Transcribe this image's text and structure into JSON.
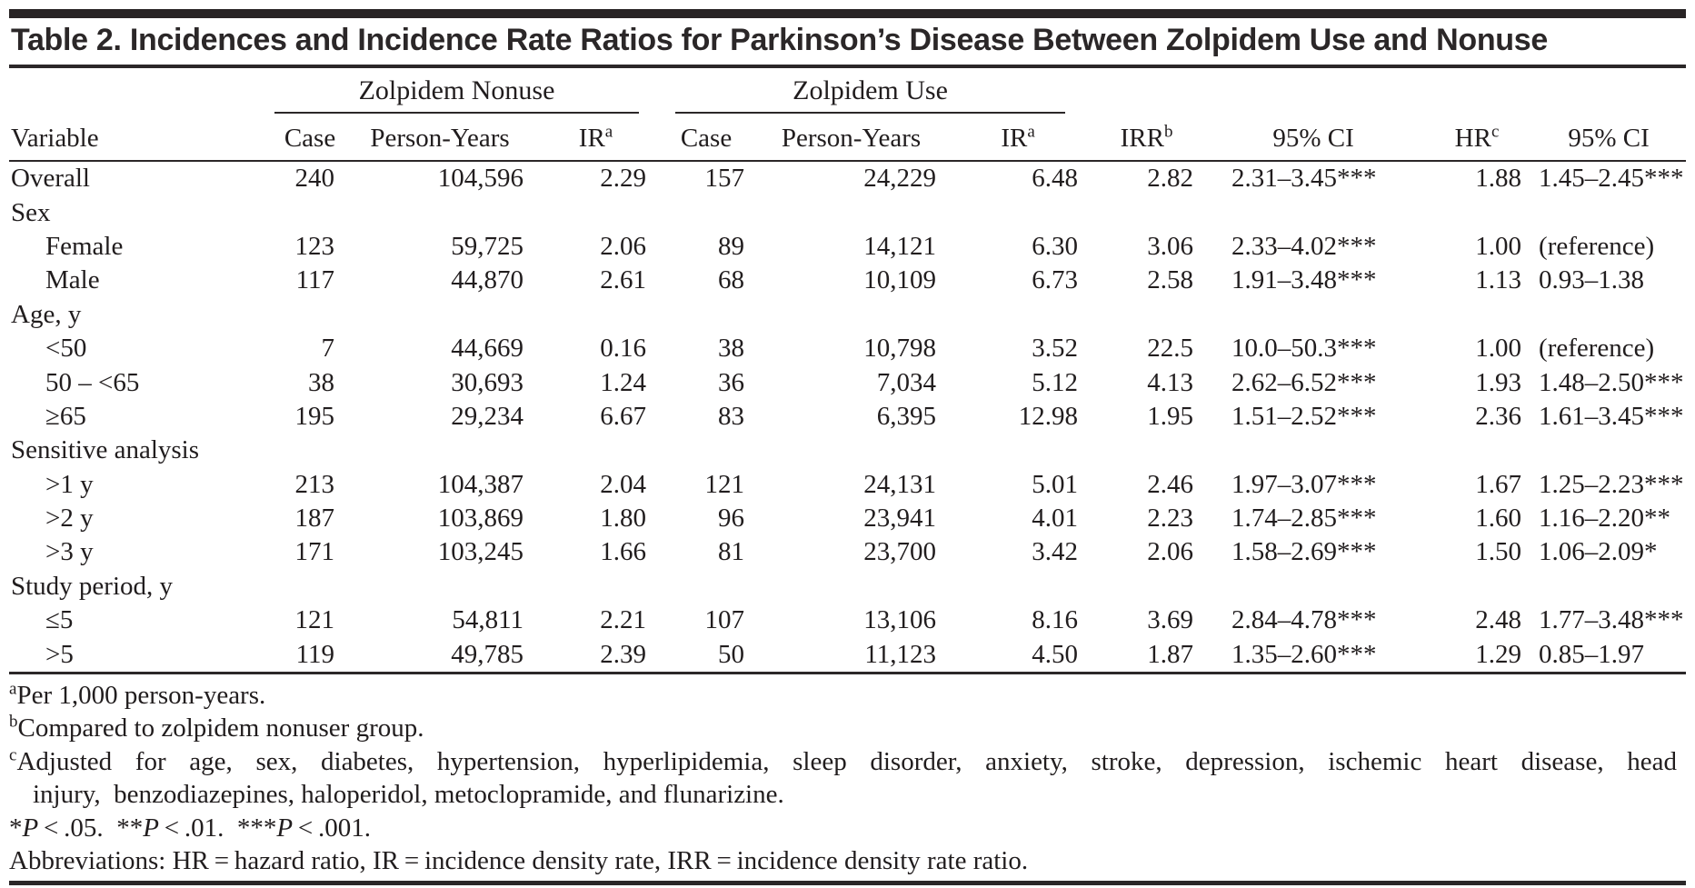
{
  "colors": {
    "ink": "#2b2728",
    "background": "#ffffff"
  },
  "title": "Table 2. Incidences and Incidence Rate Ratios for Parkinson’s Disease Between Zolpidem Use and Nonuse",
  "table": {
    "header": {
      "variable": "Variable",
      "groups": [
        {
          "label": "Zolpidem Nonuse",
          "cols": [
            {
              "label": "Case"
            },
            {
              "label": "Person-Years"
            },
            {
              "label": "IR",
              "sup": "a"
            }
          ]
        },
        {
          "label": "Zolpidem Use",
          "cols": [
            {
              "label": "Case"
            },
            {
              "label": "Person-Years"
            },
            {
              "label": "IR",
              "sup": "a"
            }
          ]
        }
      ],
      "extra": [
        {
          "label": "IRR",
          "sup": "b"
        },
        {
          "label": "95% CI"
        },
        {
          "label": "HR",
          "sup": "c"
        },
        {
          "label": "95% CI"
        }
      ]
    },
    "rows": [
      {
        "variable": "Overall",
        "indent": false,
        "section": false,
        "values": [
          "240",
          "104,596",
          "2.29",
          "157",
          "24,229",
          "6.48",
          "2.82",
          "2.31–3.45***",
          "1.88",
          "1.45–2.45***"
        ]
      },
      {
        "variable": "Sex",
        "indent": false,
        "section": true,
        "values": []
      },
      {
        "variable": "Female",
        "indent": true,
        "section": false,
        "values": [
          "123",
          "59,725",
          "2.06",
          "89",
          "14,121",
          "6.30",
          "3.06",
          "2.33–4.02***",
          "1.00",
          "(reference)"
        ]
      },
      {
        "variable": "Male",
        "indent": true,
        "section": false,
        "values": [
          "117",
          "44,870",
          "2.61",
          "68",
          "10,109",
          "6.73",
          "2.58",
          "1.91–3.48***",
          "1.13",
          "0.93–1.38"
        ]
      },
      {
        "variable": "Age, y",
        "indent": false,
        "section": true,
        "values": []
      },
      {
        "variable": "<50",
        "indent": true,
        "section": false,
        "values": [
          "7",
          "44,669",
          "0.16",
          "38",
          "10,798",
          "3.52",
          "22.5",
          "10.0–50.3***",
          "1.00",
          "(reference)"
        ]
      },
      {
        "variable": "50 – <65",
        "indent": true,
        "section": false,
        "values": [
          "38",
          "30,693",
          "1.24",
          "36",
          "7,034",
          "5.12",
          "4.13",
          "2.62–6.52***",
          "1.93",
          "1.48–2.50***"
        ]
      },
      {
        "variable": "≥65",
        "indent": true,
        "section": false,
        "values": [
          "195",
          "29,234",
          "6.67",
          "83",
          "6,395",
          "12.98",
          "1.95",
          "1.51–2.52***",
          "2.36",
          "1.61–3.45***"
        ]
      },
      {
        "variable": "Sensitive analysis",
        "indent": false,
        "section": true,
        "values": []
      },
      {
        "variable": ">1 y",
        "indent": true,
        "section": false,
        "values": [
          "213",
          "104,387",
          "2.04",
          "121",
          "24,131",
          "5.01",
          "2.46",
          "1.97–3.07***",
          "1.67",
          "1.25–2.23***"
        ]
      },
      {
        "variable": ">2 y",
        "indent": true,
        "section": false,
        "values": [
          "187",
          "103,869",
          "1.80",
          "96",
          "23,941",
          "4.01",
          "2.23",
          "1.74–2.85***",
          "1.60",
          "1.16–2.20**"
        ]
      },
      {
        "variable": ">3 y",
        "indent": true,
        "section": false,
        "values": [
          "171",
          "103,245",
          "1.66",
          "81",
          "23,700",
          "3.42",
          "2.06",
          "1.58–2.69***",
          "1.50",
          "1.06–2.09*"
        ]
      },
      {
        "variable": "Study period, y",
        "indent": false,
        "section": true,
        "values": []
      },
      {
        "variable": "≤5",
        "indent": true,
        "section": false,
        "values": [
          "121",
          "54,811",
          "2.21",
          "107",
          "13,106",
          "8.16",
          "3.69",
          "2.84–4.78***",
          "2.48",
          "1.77–3.48***"
        ]
      },
      {
        "variable": ">5",
        "indent": true,
        "section": false,
        "values": [
          "119",
          "49,785",
          "2.39",
          "50",
          "11,123",
          "4.50",
          "1.87",
          "1.35–2.60***",
          "1.29",
          "0.85–1.97"
        ]
      }
    ]
  },
  "footnotes": [
    {
      "sup": "a",
      "lines": [
        [
          {
            "text": "Per 1,000 person-years."
          }
        ]
      ]
    },
    {
      "sup": "b",
      "lines": [
        [
          {
            "text": "Compared to zolpidem nonuser group."
          }
        ]
      ]
    },
    {
      "sup": "c",
      "justify_first": true,
      "lines": [
        [
          {
            "text": "Adjusted for age, sex, diabetes, hypertension, hyperlipidemia, sleep disorder, anxiety, stroke, depression, ischemic heart disease, head"
          }
        ],
        [
          {
            "text": "injury, benzodiazepines, haloperidol, metoclopramide, and flunarizine."
          }
        ]
      ]
    },
    {
      "lines": [
        [
          {
            "text": "*"
          },
          {
            "text": "P",
            "italic": true
          },
          {
            "text": " < .05. "
          },
          {
            "text": "**"
          },
          {
            "text": "P",
            "italic": true
          },
          {
            "text": " < .01. "
          },
          {
            "text": "***"
          },
          {
            "text": "P",
            "italic": true
          },
          {
            "text": " < .001."
          }
        ]
      ]
    },
    {
      "lines": [
        [
          {
            "text": "Abbreviations: HR = hazard ratio, IR = incidence density rate, IRR = incidence density rate ratio."
          }
        ]
      ]
    }
  ]
}
